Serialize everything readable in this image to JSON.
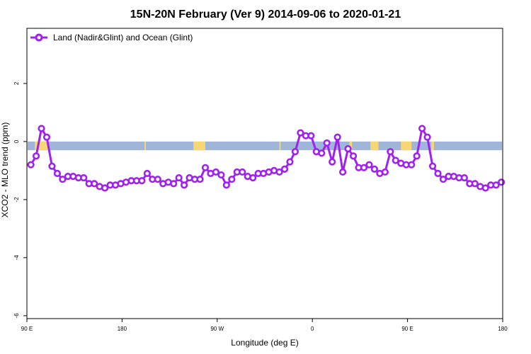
{
  "chart_data": {
    "type": "line",
    "title": "15N-20N February (Ver 9)   2014-09-06 to 2020-01-21",
    "xlabel": "Longitude (deg E)",
    "ylabel": "XCO2 - MLO trend (ppm)",
    "xlim": [
      90,
      450
    ],
    "ylim": [
      -6.1,
      3.9
    ],
    "x_ticks": [
      {
        "value": 90,
        "label": "90 E"
      },
      {
        "value": 162,
        "label": "180"
      },
      {
        "value": 234,
        "label": "90 W"
      },
      {
        "value": 306,
        "label": "0"
      },
      {
        "value": 378,
        "label": "90 E"
      },
      {
        "value": 450,
        "label": "180"
      }
    ],
    "y_ticks": [
      {
        "value": -6,
        "label": "-6"
      },
      {
        "value": -4,
        "label": "-4"
      },
      {
        "value": -2,
        "label": "-2"
      },
      {
        "value": 0,
        "label": "0"
      },
      {
        "value": 2,
        "label": "2"
      }
    ],
    "band": {
      "y_top": 0.0,
      "y_bottom": -0.3,
      "ocean_color": "#9fb6d9",
      "land_color": "#f7d774"
    },
    "land_segments": [
      [
        96,
        106
      ],
      [
        179,
        180
      ],
      [
        216,
        225
      ],
      [
        281,
        282
      ],
      [
        334,
        336
      ],
      [
        350,
        356
      ],
      [
        373,
        381
      ],
      [
        396,
        398
      ]
    ],
    "legend": {
      "position": "top-left",
      "label": "Land (Nadir&Glint) and Ocean (Glint)"
    },
    "series": [
      {
        "name": "Land (Nadir&Glint) and Ocean (Glint)",
        "color": "#a020f0",
        "x": [
          93,
          97,
          101,
          105,
          109,
          113,
          117,
          121,
          125,
          129,
          133,
          137,
          141,
          145,
          149,
          153,
          157,
          161,
          165,
          169,
          173,
          177,
          181,
          185,
          189,
          193,
          197,
          201,
          205,
          209,
          213,
          217,
          221,
          225,
          229,
          233,
          237,
          241,
          245,
          249,
          253,
          257,
          261,
          265,
          269,
          273,
          277,
          281,
          285,
          289,
          293,
          297,
          301,
          305,
          309,
          313,
          317,
          321,
          325,
          329,
          333,
          337,
          341,
          345,
          349,
          353,
          357,
          361,
          365,
          369,
          373,
          377,
          381,
          385,
          389,
          393,
          397,
          401,
          405,
          409,
          413,
          417,
          421,
          425,
          429,
          433,
          437,
          441,
          445,
          449
        ],
        "y": [
          -0.8,
          -0.5,
          0.45,
          0.15,
          -0.85,
          -1.1,
          -1.3,
          -1.2,
          -1.2,
          -1.25,
          -1.25,
          -1.45,
          -1.45,
          -1.55,
          -1.6,
          -1.5,
          -1.5,
          -1.45,
          -1.4,
          -1.35,
          -1.35,
          -1.35,
          -1.1,
          -1.3,
          -1.3,
          -1.45,
          -1.4,
          -1.45,
          -1.25,
          -1.5,
          -1.25,
          -1.3,
          -1.3,
          -0.9,
          -1.1,
          -1.05,
          -1.15,
          -1.5,
          -1.3,
          -1.05,
          -1.05,
          -1.2,
          -1.25,
          -1.1,
          -1.1,
          -1.05,
          -1.0,
          -1.05,
          -0.95,
          -0.7,
          -0.35,
          0.3,
          0.2,
          0.2,
          -0.35,
          -0.4,
          -0.05,
          -0.7,
          0.15,
          -1.05,
          -0.25,
          -0.5,
          -0.9,
          -0.9,
          -0.8,
          -0.95,
          -1.1,
          -1.05,
          -0.35,
          -0.65,
          -0.75,
          -0.8,
          -0.8,
          -0.5,
          0.45,
          0.15,
          -0.85,
          -1.1,
          -1.3,
          -1.2,
          -1.2,
          -1.25,
          -1.25,
          -1.45,
          -1.45,
          -1.55,
          -1.6,
          -1.5,
          -1.5,
          -1.4
        ]
      }
    ]
  }
}
